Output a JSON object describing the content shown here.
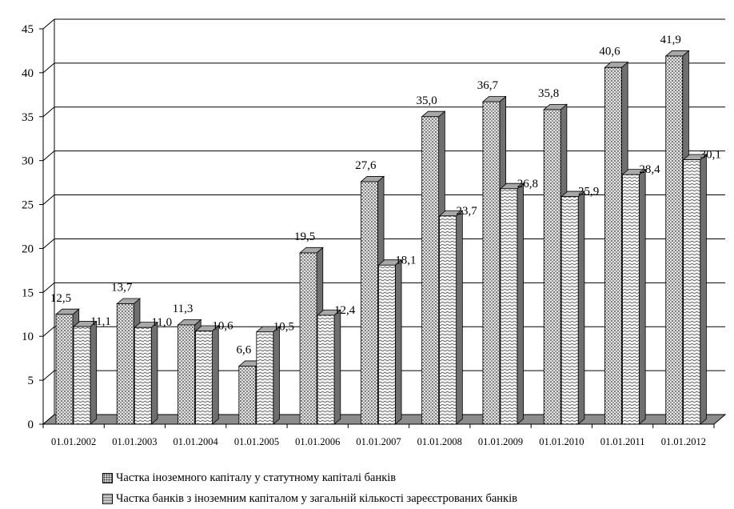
{
  "chart_data": {
    "type": "bar",
    "categories": [
      "01.01.2002",
      "01.01.2003",
      "01.01.2004",
      "01.01.2005",
      "01.01.2006",
      "01.01.2007",
      "01.01.2008",
      "01.01.2009",
      "01.01.2010",
      "01.01.2011",
      "01.01.2012"
    ],
    "series": [
      {
        "name": "Частка іноземного капіталу у статутному капіталі банків",
        "values": [
          12.5,
          13.7,
          11.3,
          6.6,
          19.5,
          27.6,
          35.0,
          36.7,
          35.8,
          40.6,
          41.9
        ],
        "labels": [
          "12,5",
          "13,7",
          "11,3",
          "6,6",
          "19,5",
          "27,6",
          "35,0",
          "36,7",
          "35,8",
          "40,6",
          "41,9"
        ]
      },
      {
        "name": "Частка банків з іноземним капіталом у загальній кількості зареєстрованих банків",
        "values": [
          11.1,
          11.0,
          10.6,
          10.5,
          12.4,
          18.1,
          23.7,
          26.8,
          25.9,
          28.4,
          30.1
        ],
        "labels": [
          "11,1",
          "11,0",
          "10,6",
          "10,5",
          "12,4",
          "18,1",
          "23,7",
          "26,8",
          "25,9",
          "28,4",
          "30,1"
        ]
      }
    ],
    "ylim": [
      0,
      45
    ],
    "yticks": [
      0,
      5,
      10,
      15,
      20,
      25,
      30,
      35,
      40,
      45
    ],
    "grid": true,
    "style": "3d-clustered-column",
    "legend_position": "bottom",
    "patterns": [
      "dots",
      "waves"
    ],
    "colors": {
      "floor": "#8c8c8c",
      "bar_fill": "#d9d9d9",
      "bar_side": "#6f6f6f",
      "bar_top": "#a8a8a8",
      "grid": "#000000"
    }
  }
}
